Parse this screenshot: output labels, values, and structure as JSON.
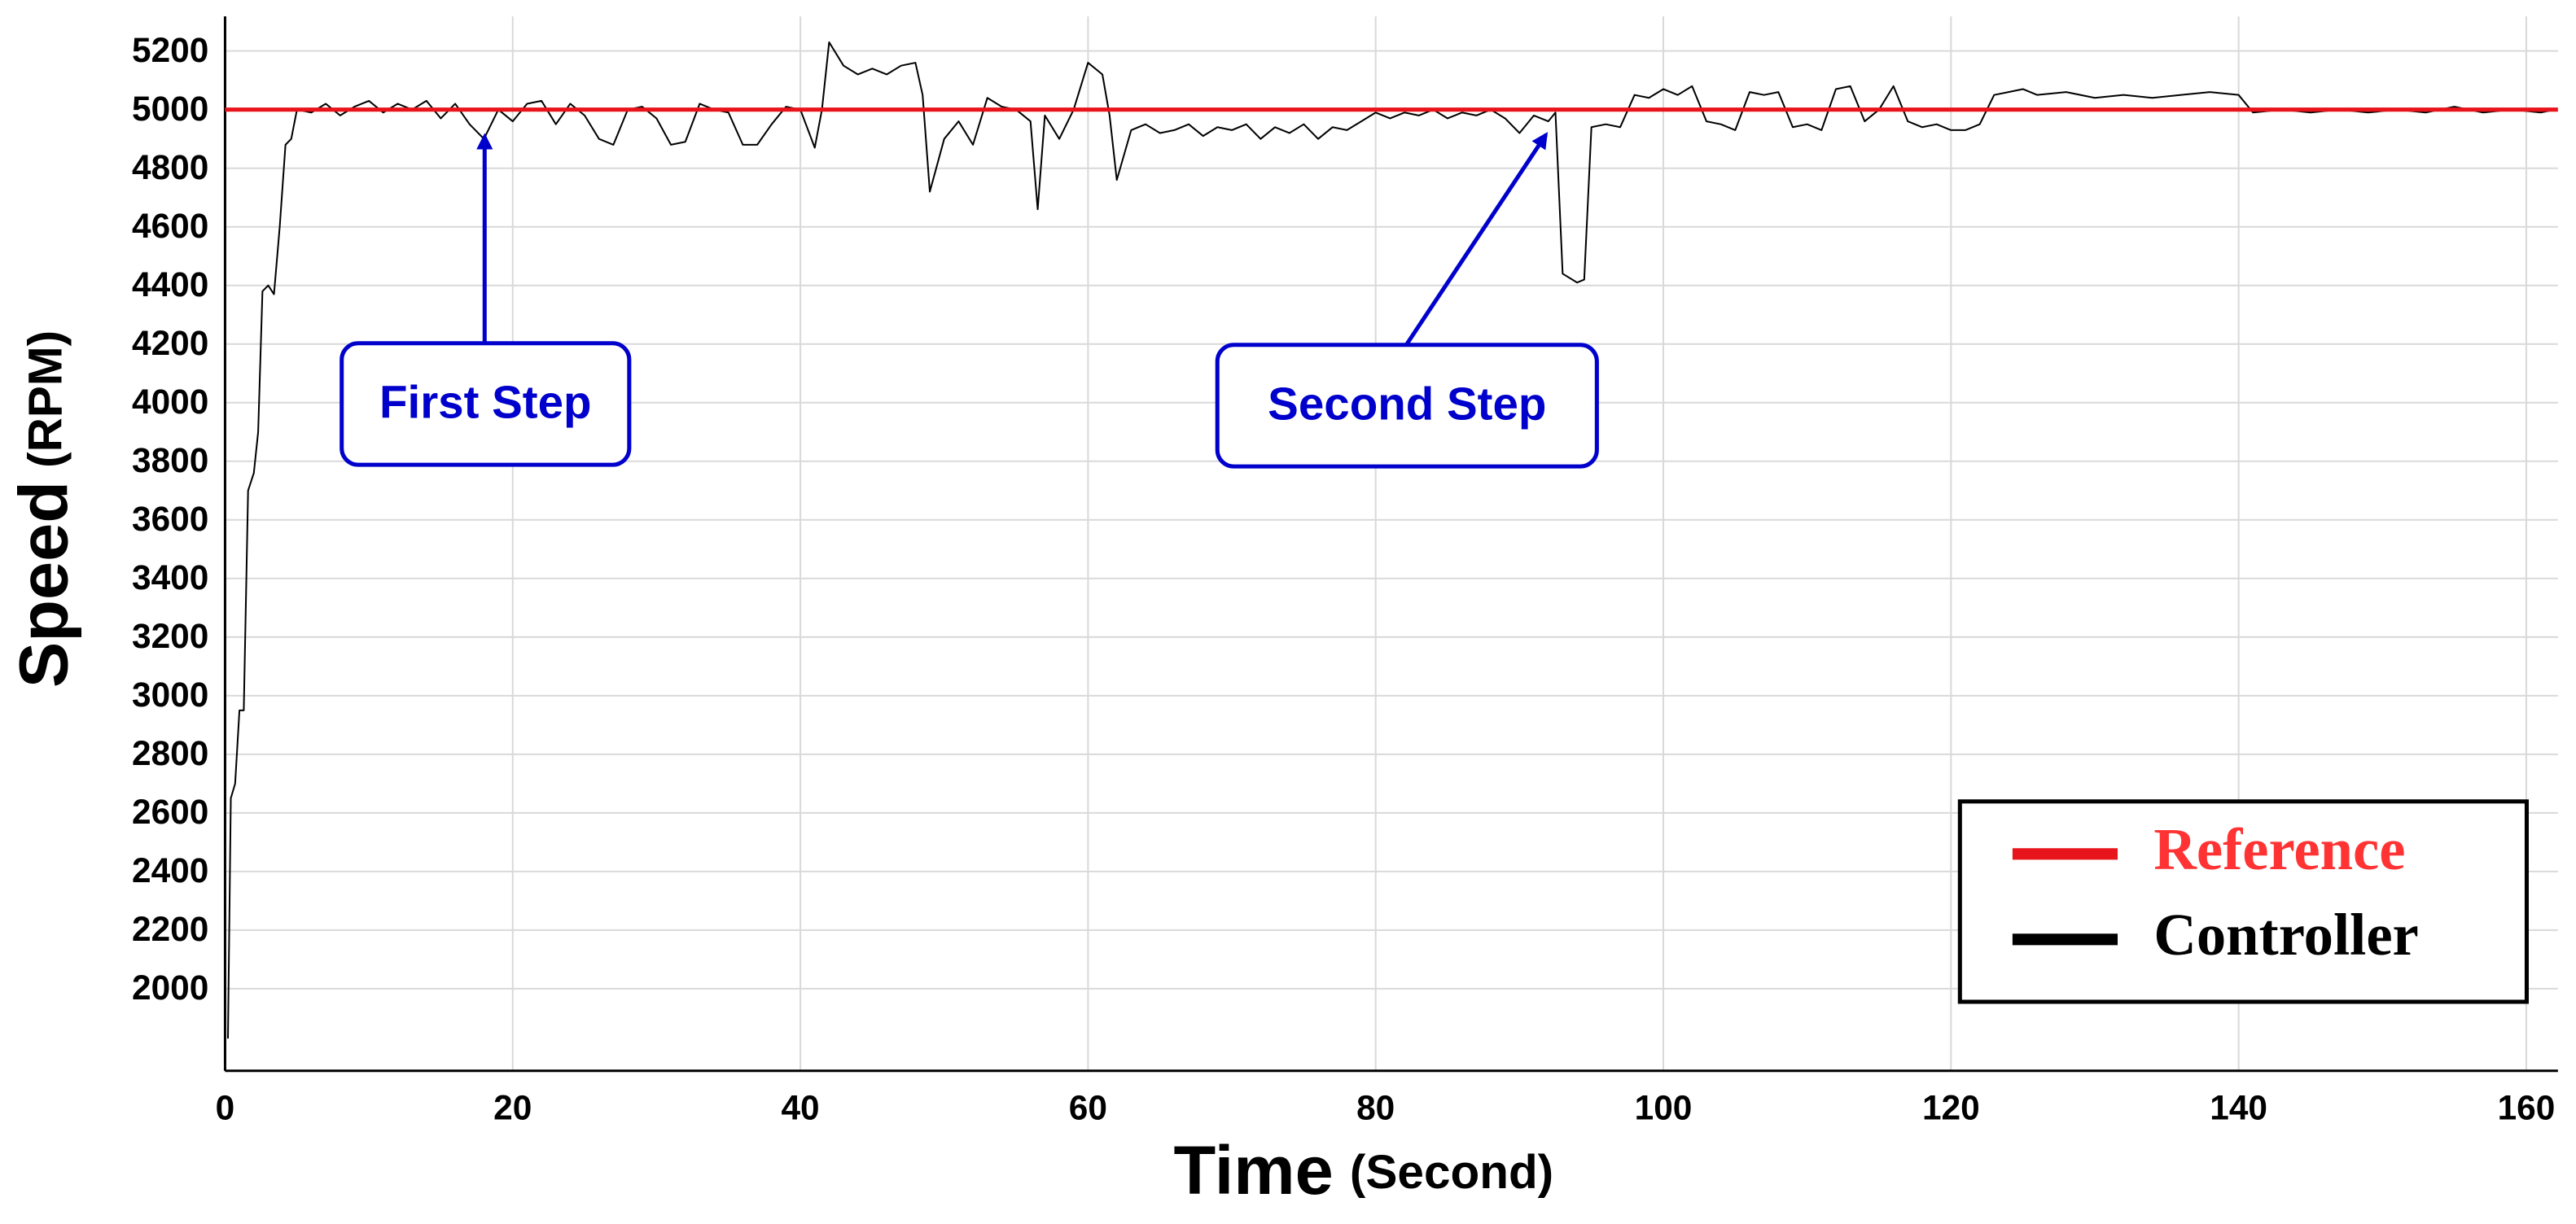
{
  "chart_data": {
    "type": "line",
    "x_label": "Time",
    "x_label_unit": "(Second)",
    "y_label": "Speed",
    "y_label_unit": "(RPM)",
    "xlim": [
      0,
      162.2
    ],
    "ylim": [
      1720,
      5318
    ],
    "xticks": [
      0,
      20,
      40,
      60,
      80,
      100,
      120,
      140,
      160
    ],
    "yticks": [
      2000,
      2200,
      2400,
      2600,
      2800,
      3000,
      3200,
      3400,
      3600,
      3800,
      4000,
      4200,
      4400,
      4600,
      4800,
      5000,
      5200
    ],
    "grid": true,
    "legend": "lower right",
    "annotations": [
      {
        "text": "First Step"
      },
      {
        "text": "Second Step"
      }
    ],
    "series": [
      {
        "name": "Reference",
        "color": "#e8141c",
        "x": [
          0,
          162.2
        ],
        "values": [
          5000,
          5000
        ]
      },
      {
        "name": "Controller",
        "color": "#000000",
        "x": [
          0.2,
          0.4,
          0.7,
          1,
          1.3,
          1.6,
          2,
          2.3,
          2.6,
          3,
          3.4,
          3.8,
          4.2,
          4.6,
          5,
          6,
          7,
          8,
          9,
          10,
          11,
          12,
          13,
          14,
          15,
          16,
          17,
          18,
          19,
          20,
          21,
          22,
          23,
          24,
          25,
          26,
          27,
          28,
          29,
          30,
          31,
          32,
          33,
          34,
          35,
          36,
          37,
          38,
          39,
          40,
          41,
          41.5,
          42,
          43,
          44,
          45,
          46,
          47,
          48,
          48.5,
          49,
          50,
          51,
          52,
          53,
          54,
          55,
          56,
          56.5,
          57,
          58,
          59,
          60,
          61,
          61.5,
          62,
          63,
          64,
          65,
          66,
          67,
          68,
          69,
          70,
          71,
          72,
          73,
          74,
          75,
          76,
          77,
          78,
          79,
          80,
          81,
          82,
          83,
          84,
          85,
          86,
          87,
          88,
          89,
          90,
          91,
          92,
          92.5,
          93,
          94,
          94.5,
          95,
          96,
          97,
          98,
          99,
          100,
          101,
          102,
          103,
          104,
          105,
          106,
          107,
          108,
          109,
          110,
          111,
          112,
          113,
          114,
          115,
          116,
          117,
          118,
          119,
          120,
          121,
          122,
          123,
          124,
          125,
          126,
          128,
          130,
          132,
          134,
          136,
          138,
          140,
          141,
          143,
          145,
          147,
          149,
          151,
          153,
          155,
          157,
          159,
          161,
          162
        ],
        "values": [
          1830,
          2650,
          2700,
          2950,
          2950,
          3700,
          3760,
          3900,
          4380,
          4400,
          4370,
          4600,
          4880,
          4900,
          5000,
          4990,
          5020,
          4980,
          5010,
          5030,
          4990,
          5020,
          5000,
          5030,
          4970,
          5020,
          4950,
          4900,
          5000,
          4960,
          5020,
          5030,
          4950,
          5020,
          4980,
          4900,
          4880,
          5000,
          5010,
          4970,
          4880,
          4890,
          5020,
          5000,
          4990,
          4880,
          4880,
          4950,
          5010,
          5000,
          4870,
          5000,
          5230,
          5150,
          5120,
          5140,
          5120,
          5150,
          5160,
          5050,
          4720,
          4900,
          4960,
          4880,
          5040,
          5010,
          5000,
          4960,
          4660,
          4980,
          4900,
          5000,
          5160,
          5120,
          4980,
          4760,
          4930,
          4950,
          4920,
          4930,
          4950,
          4910,
          4940,
          4930,
          4950,
          4900,
          4940,
          4920,
          4950,
          4900,
          4940,
          4930,
          4960,
          4990,
          4970,
          4990,
          4980,
          5000,
          4970,
          4990,
          4980,
          5000,
          4970,
          4920,
          4980,
          4960,
          4990,
          4440,
          4410,
          4420,
          4940,
          4950,
          4940,
          5050,
          5040,
          5070,
          5050,
          5080,
          4960,
          4950,
          4930,
          5060,
          5050,
          5060,
          4940,
          4950,
          4930,
          5070,
          5080,
          4960,
          5000,
          5080,
          4960,
          4940,
          4950,
          4930,
          4930,
          4950,
          5050,
          5060,
          5070,
          5050,
          5060,
          5040,
          5050,
          5040,
          5050,
          5060,
          5050,
          4990,
          5000,
          4990,
          5000,
          4990,
          5000,
          4990,
          5010,
          4990,
          5000,
          4990,
          5000
        ]
      }
    ]
  }
}
